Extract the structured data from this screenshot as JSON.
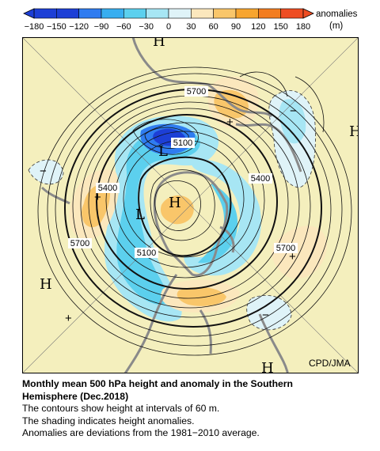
{
  "legend": {
    "title": "anomalies",
    "unit": "(m)",
    "ticks": [
      "−180",
      "−150",
      "−120",
      "−90",
      "−60",
      "−30",
      "0",
      "30",
      "60",
      "90",
      "120",
      "150",
      "180"
    ],
    "colors": [
      "#1d3fd6",
      "#2f7cf0",
      "#38aef0",
      "#5cd0ee",
      "#a7e6f4",
      "#dff3f8",
      "#fbe7bd",
      "#f9c66a",
      "#f7a52f",
      "#f37d1f",
      "#ee4d22"
    ]
  },
  "map": {
    "background_color": "#f4efbd",
    "contour_labels": [
      "5700",
      "5100",
      "5400",
      "5400",
      "5700",
      "5100",
      "5700"
    ],
    "centers": {
      "high": "H",
      "low": "L"
    },
    "anomaly_signs": {
      "positive": "+",
      "negative": "−"
    },
    "credit": "CPD/JMA"
  },
  "caption": {
    "title_line1": "Monthly mean 500 hPa height and anomaly in the Southern",
    "title_line2": "Hemisphere (Dec.2018)",
    "line1": "The contours show height at intervals of 60 m.",
    "line2": "The shading indicates height anomalies.",
    "line3": "Anomalies are deviations from the 1981−2010 average."
  }
}
